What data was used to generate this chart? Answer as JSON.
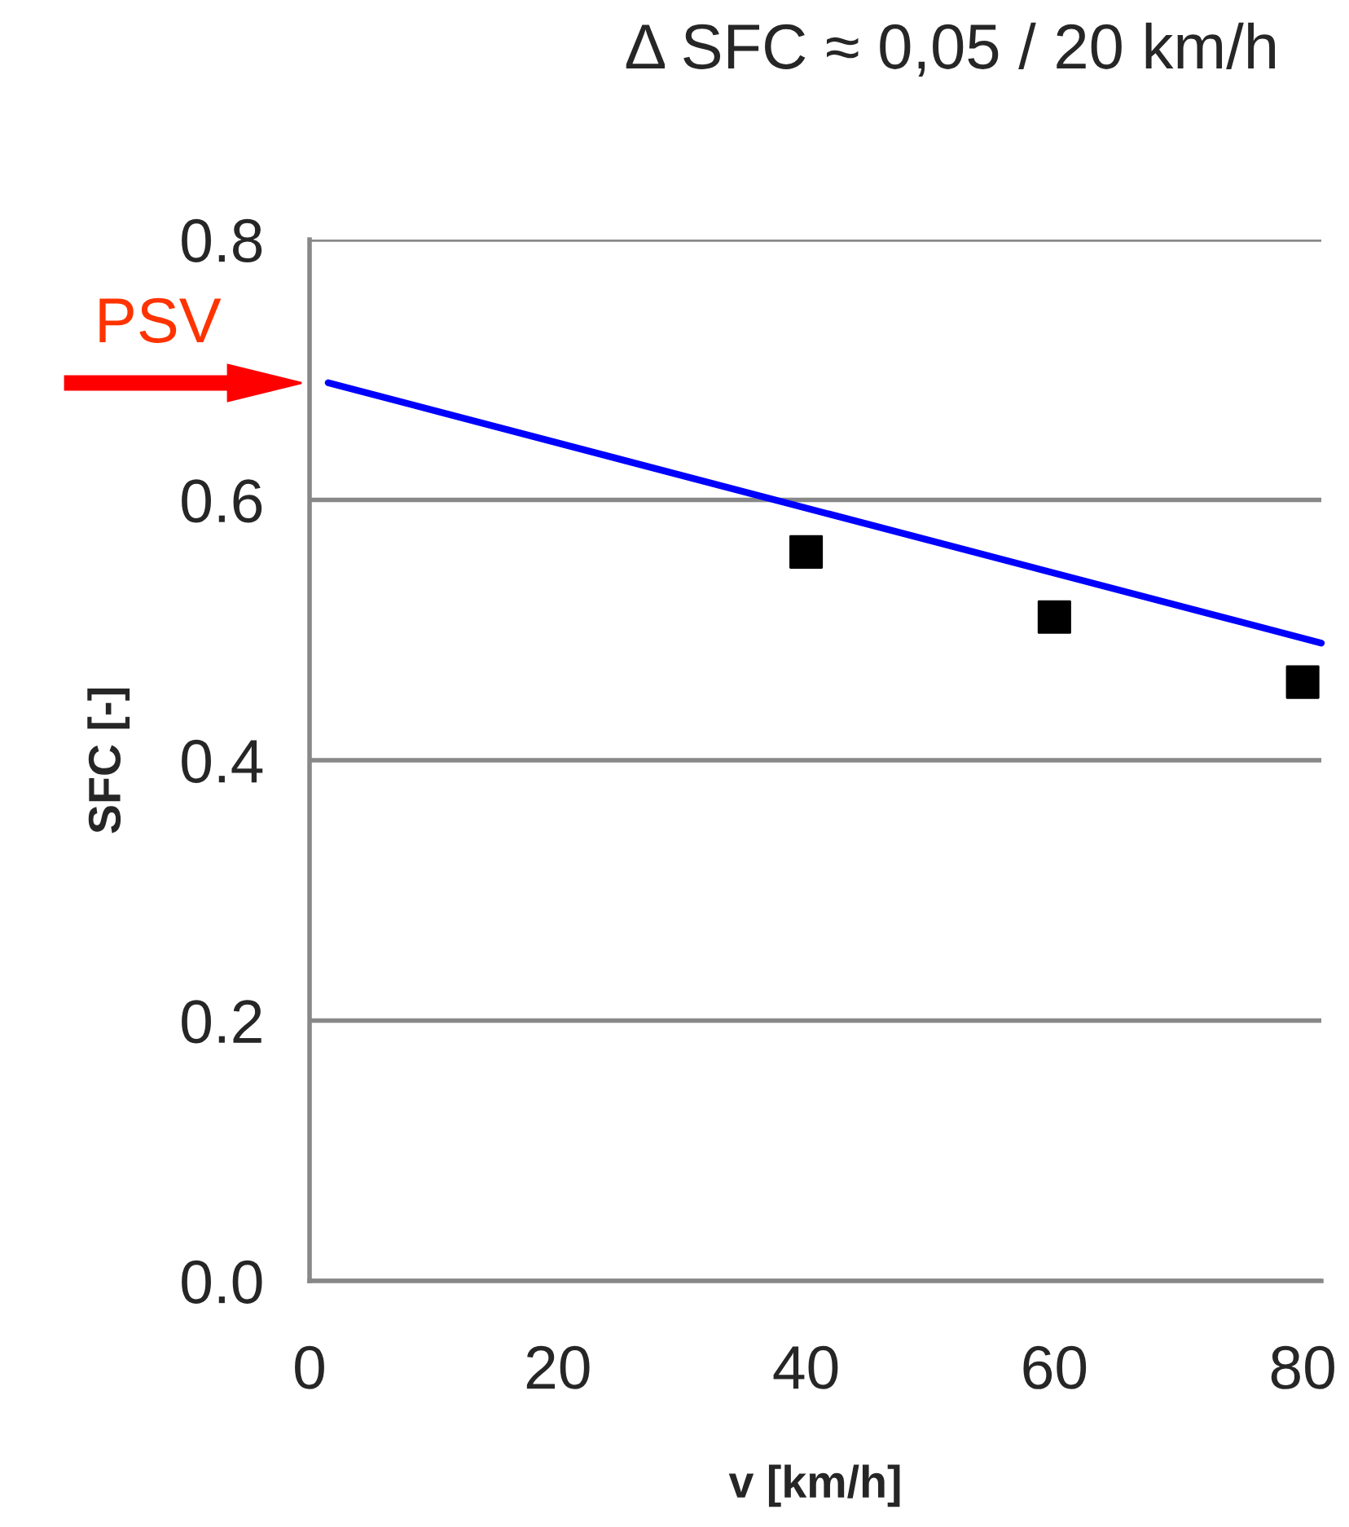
{
  "chart_data": {
    "type": "scatter",
    "title": "Δ SFC ≈ 0,05 / 20 km/h",
    "xlabel": "v [km/h]",
    "ylabel": "SFC [-]",
    "xlim": [
      0,
      81.5
    ],
    "xticks": [
      0,
      20,
      40,
      60,
      80
    ],
    "ylim": [
      0,
      0.8
    ],
    "yticks": [
      {
        "value": 0,
        "label": "0.0"
      },
      {
        "value": 0.2,
        "label": "0.2"
      },
      {
        "value": 0.4,
        "label": "0.4"
      },
      {
        "value": 0.6,
        "label": "0.6"
      },
      {
        "value": 0.8,
        "label": "0.8"
      }
    ],
    "grid": "y",
    "legend": false,
    "series": [
      {
        "color": "#000000",
        "marker": "square",
        "x": [
          40,
          60,
          80
        ],
        "values": [
          0.56,
          0.51,
          0.46
        ]
      },
      {
        "type": "line",
        "color": "#0000ff",
        "marker": "none",
        "line_style": "solid",
        "x": [
          1.5,
          81.5
        ],
        "values": [
          0.69,
          0.49
        ]
      }
    ],
    "annotations": [
      "PSV"
    ]
  }
}
